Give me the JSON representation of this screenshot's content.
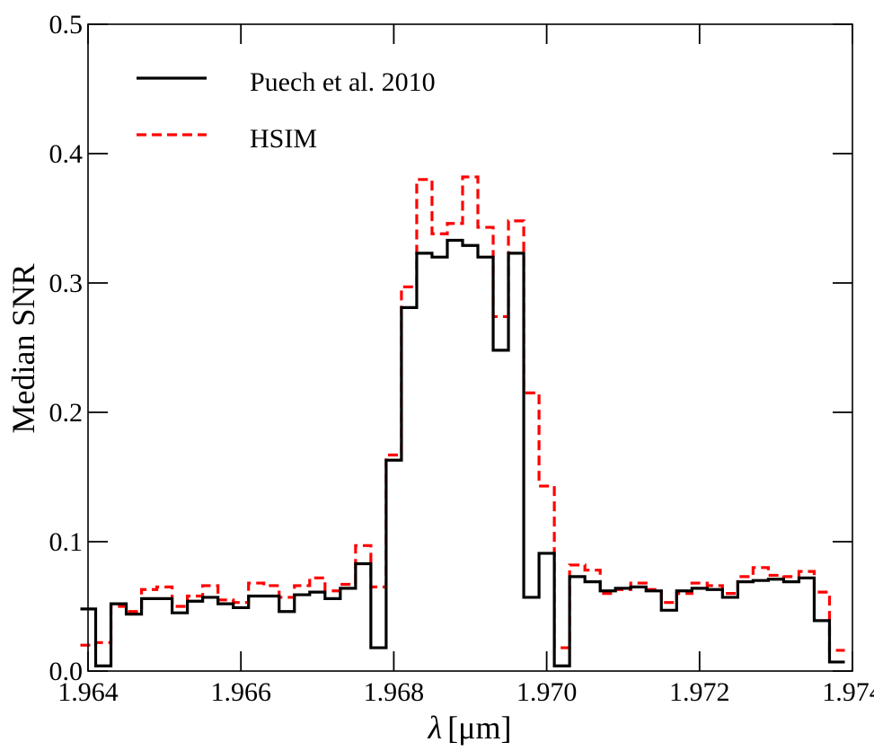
{
  "chart_data": {
    "type": "line",
    "style": "step",
    "title": "",
    "xlabel_symbol": "λ",
    "xlabel_units": "[μm]",
    "xlabel": "λ [μm]",
    "ylabel": "Median SNR",
    "xlim": [
      1.964,
      1.974
    ],
    "ylim": [
      0.0,
      0.5
    ],
    "xticks": [
      1.964,
      1.966,
      1.968,
      1.97,
      1.972,
      1.974
    ],
    "xtick_labels": [
      "1.964",
      "1.966",
      "1.968",
      "1.970",
      "1.972",
      "1.974"
    ],
    "yticks": [
      0.0,
      0.1,
      0.2,
      0.3,
      0.4,
      0.5
    ],
    "ytick_labels": [
      "0.0",
      "0.1",
      "0.2",
      "0.3",
      "0.4",
      "0.5"
    ],
    "grid": false,
    "legend_position": "top-left",
    "bin_width": 0.0002,
    "x_start": 1.9639,
    "series": [
      {
        "name": "Puech et al. 2010",
        "color": "#000000",
        "dash": "solid",
        "values": [
          0.048,
          0.004,
          0.052,
          0.044,
          0.056,
          0.056,
          0.045,
          0.054,
          0.057,
          0.052,
          0.049,
          0.058,
          0.058,
          0.046,
          0.059,
          0.061,
          0.056,
          0.064,
          0.083,
          0.018,
          0.163,
          0.281,
          0.323,
          0.32,
          0.333,
          0.329,
          0.32,
          0.248,
          0.323,
          0.057,
          0.091,
          0.004,
          0.073,
          0.069,
          0.062,
          0.064,
          0.065,
          0.062,
          0.047,
          0.062,
          0.064,
          0.063,
          0.057,
          0.069,
          0.07,
          0.071,
          0.069,
          0.072,
          0.039,
          0.007
        ]
      },
      {
        "name": "HSIM",
        "color": "#ff0000",
        "dash": "dashed",
        "values": [
          0.02,
          0.022,
          0.05,
          0.046,
          0.063,
          0.065,
          0.05,
          0.058,
          0.066,
          0.055,
          0.053,
          0.068,
          0.066,
          0.057,
          0.066,
          0.072,
          0.062,
          0.067,
          0.097,
          0.065,
          0.167,
          0.297,
          0.38,
          0.338,
          0.346,
          0.382,
          0.343,
          0.274,
          0.348,
          0.215,
          0.143,
          0.018,
          0.082,
          0.078,
          0.06,
          0.063,
          0.068,
          0.063,
          0.053,
          0.06,
          0.068,
          0.066,
          0.06,
          0.073,
          0.08,
          0.074,
          0.073,
          0.077,
          0.061,
          0.016
        ]
      }
    ]
  }
}
